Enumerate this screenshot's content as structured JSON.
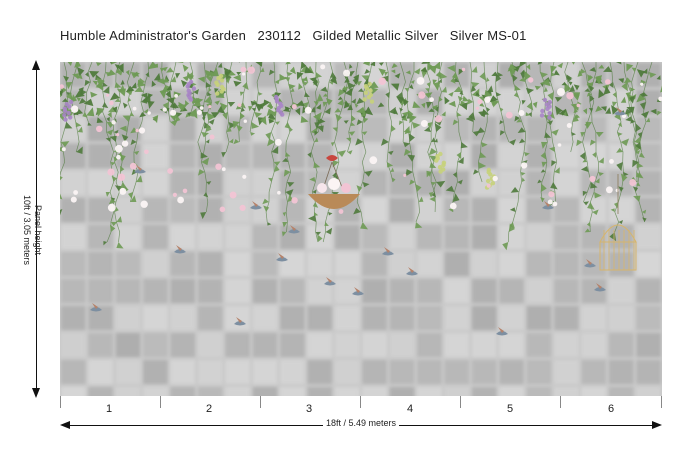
{
  "header": {
    "title": "Humble Administrator's Garden   230112   Gilded Metallic Silver   Silver MS-01"
  },
  "vertical_dimension": {
    "label_line1": "Panel height",
    "label_line2": "10ft / 3.05 meters"
  },
  "horizontal_dimension": {
    "label": "18ft / 5.49 meters"
  },
  "panels": [
    "1",
    "2",
    "3",
    "4",
    "5",
    "6"
  ],
  "colors": {
    "background": "#c9c9c9",
    "tile_light": "#d8d8d8",
    "tile_dark": "#a9a9a9",
    "leaf": "#6e9a54",
    "leaf_dark": "#4f7a3c",
    "blossom_pink": "#f2c4d4",
    "blossom_white": "#fbf4f4",
    "grape_purple": "#a985c6",
    "grape_green": "#c6d27a",
    "basket": "#b98a58",
    "ribbon": "#c8463e",
    "birdcage": "#d7b56b"
  },
  "icons": {
    "arrow_up": "arrow-up-icon",
    "arrow_down": "arrow-down-icon",
    "arrow_left": "arrow-left-icon",
    "arrow_right": "arrow-right-icon"
  }
}
